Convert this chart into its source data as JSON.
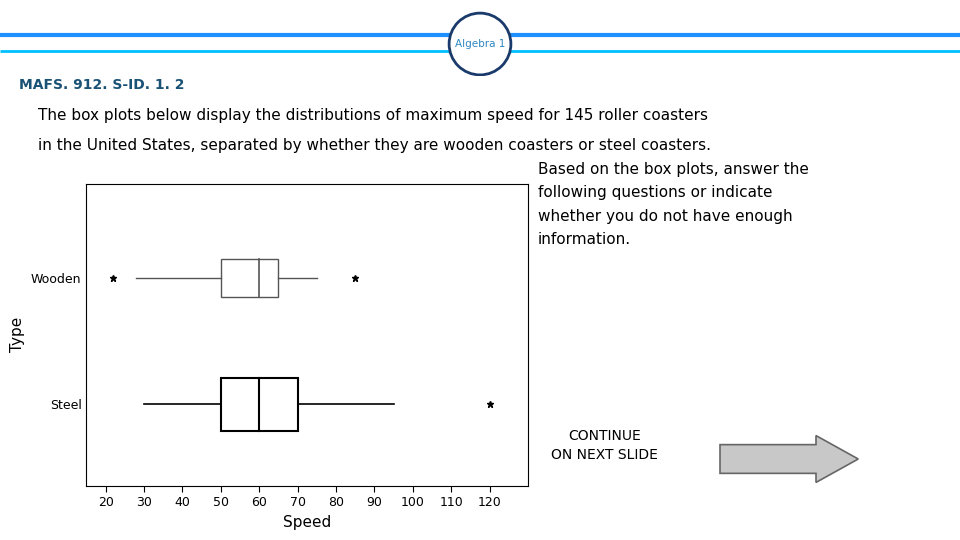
{
  "title_label": "Algebra 1",
  "mafs_label": "MAFS. 912. S-ID. 1. 2",
  "description_line1": "The box plots below display the distributions of maximum speed for 145 roller coasters",
  "description_line2": "in the United States, separated by whether they are wooden coasters or steel coasters.",
  "right_text": "Based on the box plots, answer the\nfollowing questions or indicate\nwhether you do not have enough\ninformation.",
  "continue_text": "CONTINUE\nON NEXT SLIDE",
  "wooden": {
    "whisker_low": 28,
    "q1": 50,
    "median": 60,
    "q3": 65,
    "whisker_high": 75,
    "outlier_low": 22,
    "outlier_high": 85
  },
  "steel": {
    "whisker_low": 30,
    "q1": 50,
    "median": 60,
    "q3": 70,
    "whisker_high": 95,
    "outlier_low": null,
    "outlier_high": 120
  },
  "xlabel": "Speed",
  "ylabel": "Type",
  "xlim": [
    15,
    130
  ],
  "xticks": [
    20,
    30,
    40,
    50,
    60,
    70,
    80,
    90,
    100,
    110,
    120
  ],
  "categories": [
    "Steel",
    "Wooden"
  ],
  "bg_color": "#ffffff",
  "line_color1": "#1e90ff",
  "line_color2": "#00bfff",
  "circle_edge_color": "#1a3a6b",
  "circle_text_color": "#2e86c1",
  "mafs_color": "#1a5276",
  "text_color": "#000000",
  "arrow_face_color": "#c8c8c8",
  "arrow_edge_color": "#666666"
}
